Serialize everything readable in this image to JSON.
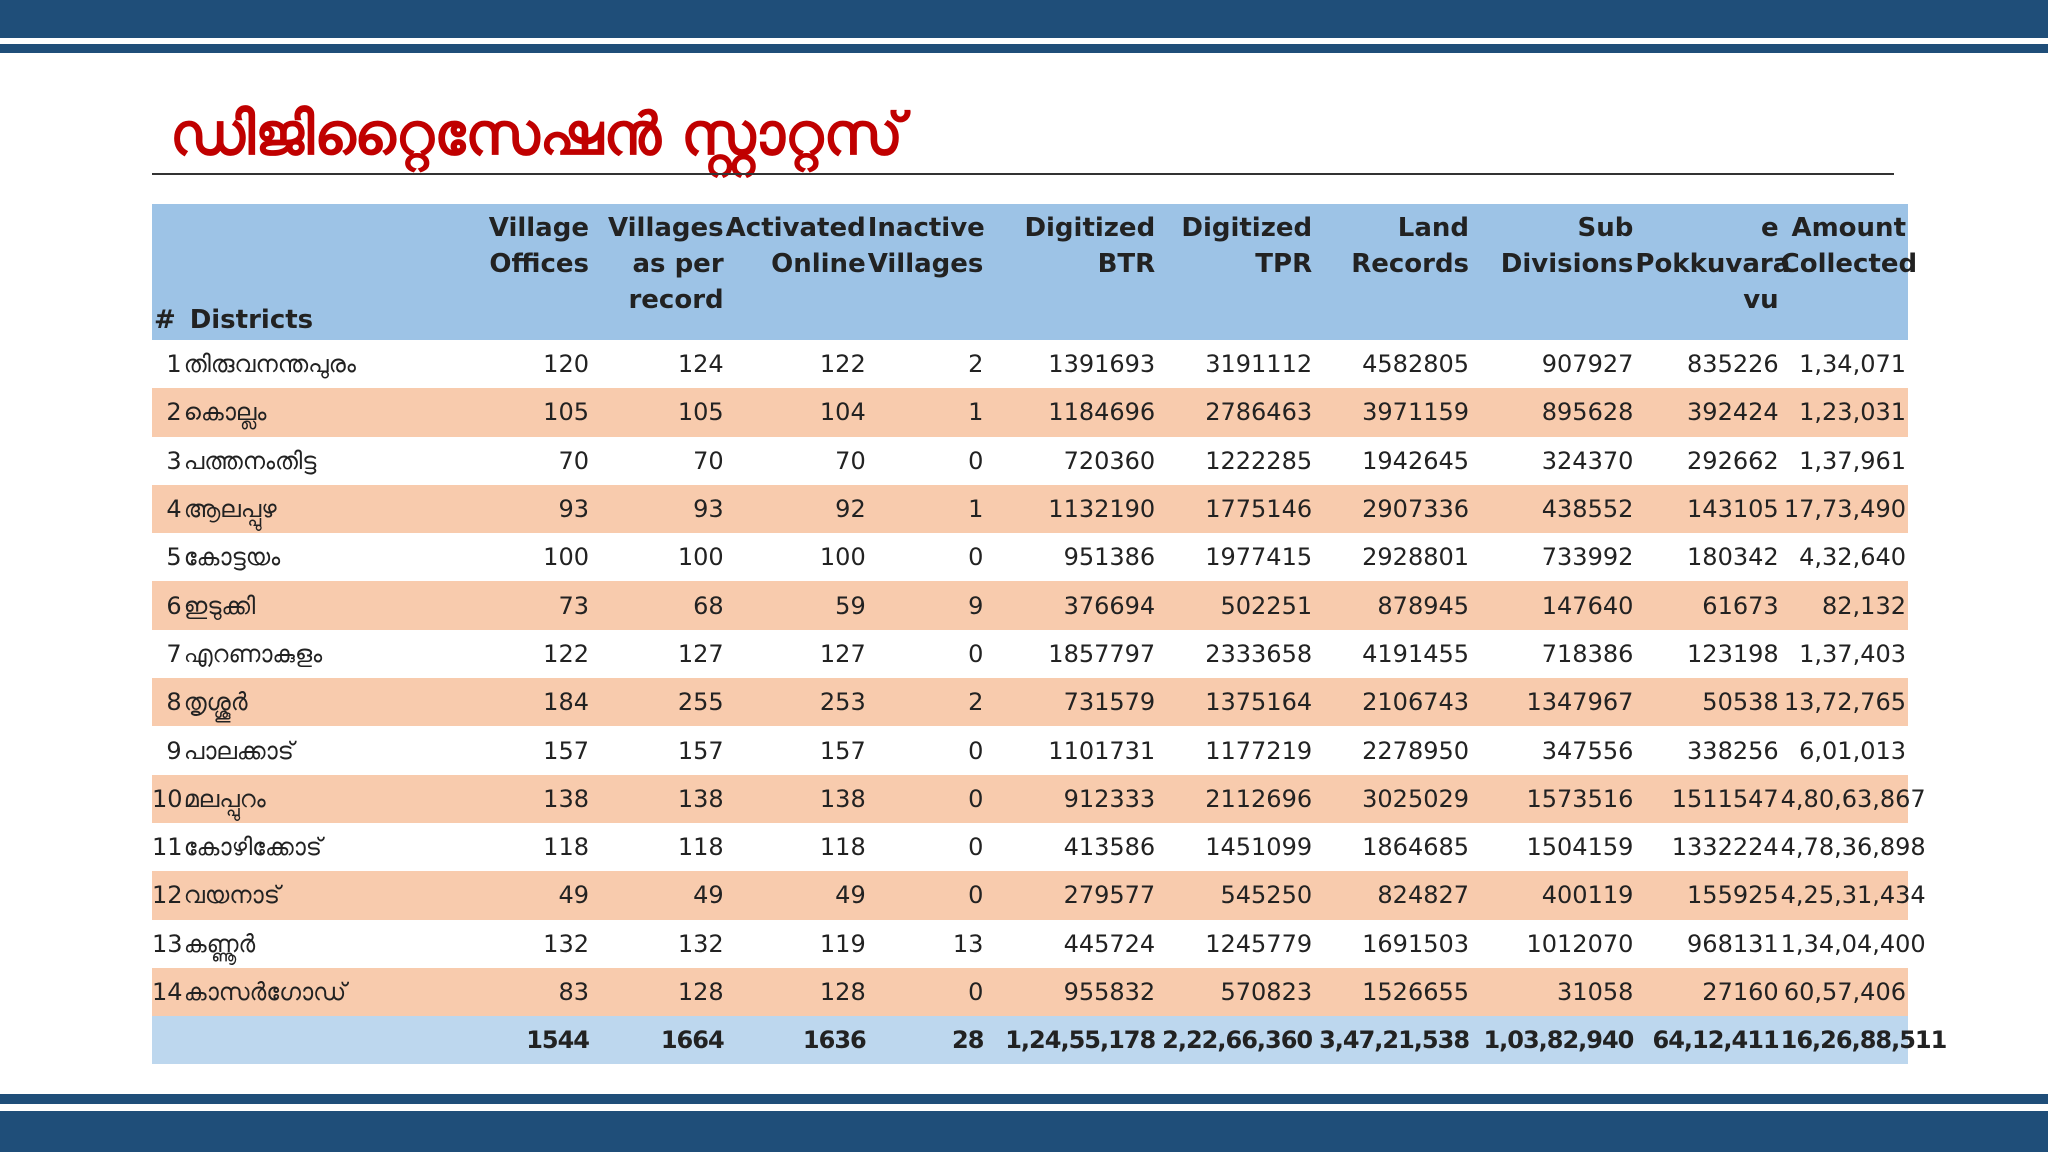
{
  "title": "ഡിജിറ്റൈസേഷൻ സ്റ്റാറ്റസ്",
  "colors": {
    "band": "#1f4e79",
    "title": "#c00000",
    "header_bg": "#9dc3e6",
    "row_alt": "#f8cbad",
    "total_bg": "#bdd7ee"
  },
  "table": {
    "headers": {
      "num": "#",
      "district": "Districts",
      "village_offices": [
        "Village",
        "Offices"
      ],
      "villages_record": [
        "Villages",
        "as per",
        "record"
      ],
      "activated": [
        "Activated",
        "Online"
      ],
      "inactive": [
        "Inactive",
        "Villages"
      ],
      "btr": [
        "Digitized",
        "BTR"
      ],
      "tpr": [
        "Digitized",
        "TPR"
      ],
      "land": [
        "Land",
        "Records"
      ],
      "sub": [
        "Sub",
        "Divisions"
      ],
      "pokkuvaravu": [
        "e",
        "Pokkuvara",
        "vu"
      ],
      "amount": [
        "Amount",
        "Collected"
      ]
    },
    "rows": [
      [
        "1",
        "തിരുവനന്തപുരം",
        "120",
        "124",
        "122",
        "2",
        "1391693",
        "3191112",
        "4582805",
        "907927",
        "835226",
        "1,34,071"
      ],
      [
        "2",
        "കൊല്ലം",
        "105",
        "105",
        "104",
        "1",
        "1184696",
        "2786463",
        "3971159",
        "895628",
        "392424",
        "1,23,031"
      ],
      [
        "3",
        "പത്തനംതിട്ട",
        "70",
        "70",
        "70",
        "0",
        "720360",
        "1222285",
        "1942645",
        "324370",
        "292662",
        "1,37,961"
      ],
      [
        "4",
        "ആലപ്പുഴ",
        "93",
        "93",
        "92",
        "1",
        "1132190",
        "1775146",
        "2907336",
        "438552",
        "143105",
        "17,73,490"
      ],
      [
        "5",
        "കോട്ടയം",
        "100",
        "100",
        "100",
        "0",
        "951386",
        "1977415",
        "2928801",
        "733992",
        "180342",
        "4,32,640"
      ],
      [
        "6",
        "ഇടുക്കി",
        "73",
        "68",
        "59",
        "9",
        "376694",
        "502251",
        "878945",
        "147640",
        "61673",
        "82,132"
      ],
      [
        "7",
        "എറണാകുളം",
        "122",
        "127",
        "127",
        "0",
        "1857797",
        "2333658",
        "4191455",
        "718386",
        "123198",
        "1,37,403"
      ],
      [
        "8",
        "തൃശ്ശൂർ",
        "184",
        "255",
        "253",
        "2",
        "731579",
        "1375164",
        "2106743",
        "1347967",
        "50538",
        "13,72,765"
      ],
      [
        "9",
        "പാലക്കാട്",
        "157",
        "157",
        "157",
        "0",
        "1101731",
        "1177219",
        "2278950",
        "347556",
        "338256",
        "6,01,013"
      ],
      [
        "10",
        "മലപ്പുറം",
        "138",
        "138",
        "138",
        "0",
        "912333",
        "2112696",
        "3025029",
        "1573516",
        "1511547",
        "4,80,63,867"
      ],
      [
        "11",
        "കോഴിക്കോട്",
        "118",
        "118",
        "118",
        "0",
        "413586",
        "1451099",
        "1864685",
        "1504159",
        "1332224",
        "4,78,36,898"
      ],
      [
        "12",
        "വയനാട്",
        "49",
        "49",
        "49",
        "0",
        "279577",
        "545250",
        "824827",
        "400119",
        "155925",
        "4,25,31,434"
      ],
      [
        "13",
        "കണ്ണൂർ",
        "132",
        "132",
        "119",
        "13",
        "445724",
        "1245779",
        "1691503",
        "1012070",
        "968131",
        "1,34,04,400"
      ],
      [
        "14",
        "കാസർഗോഡ്",
        "83",
        "128",
        "128",
        "0",
        "955832",
        "570823",
        "1526655",
        "31058",
        "27160",
        "60,57,406"
      ]
    ],
    "totals": [
      "",
      "",
      "1544",
      "1664",
      "1636",
      "28",
      "1,24,55,178",
      "2,22,66,360",
      "3,47,21,538",
      "1,03,82,940",
      "64,12,411",
      "16,26,88,511"
    ]
  }
}
